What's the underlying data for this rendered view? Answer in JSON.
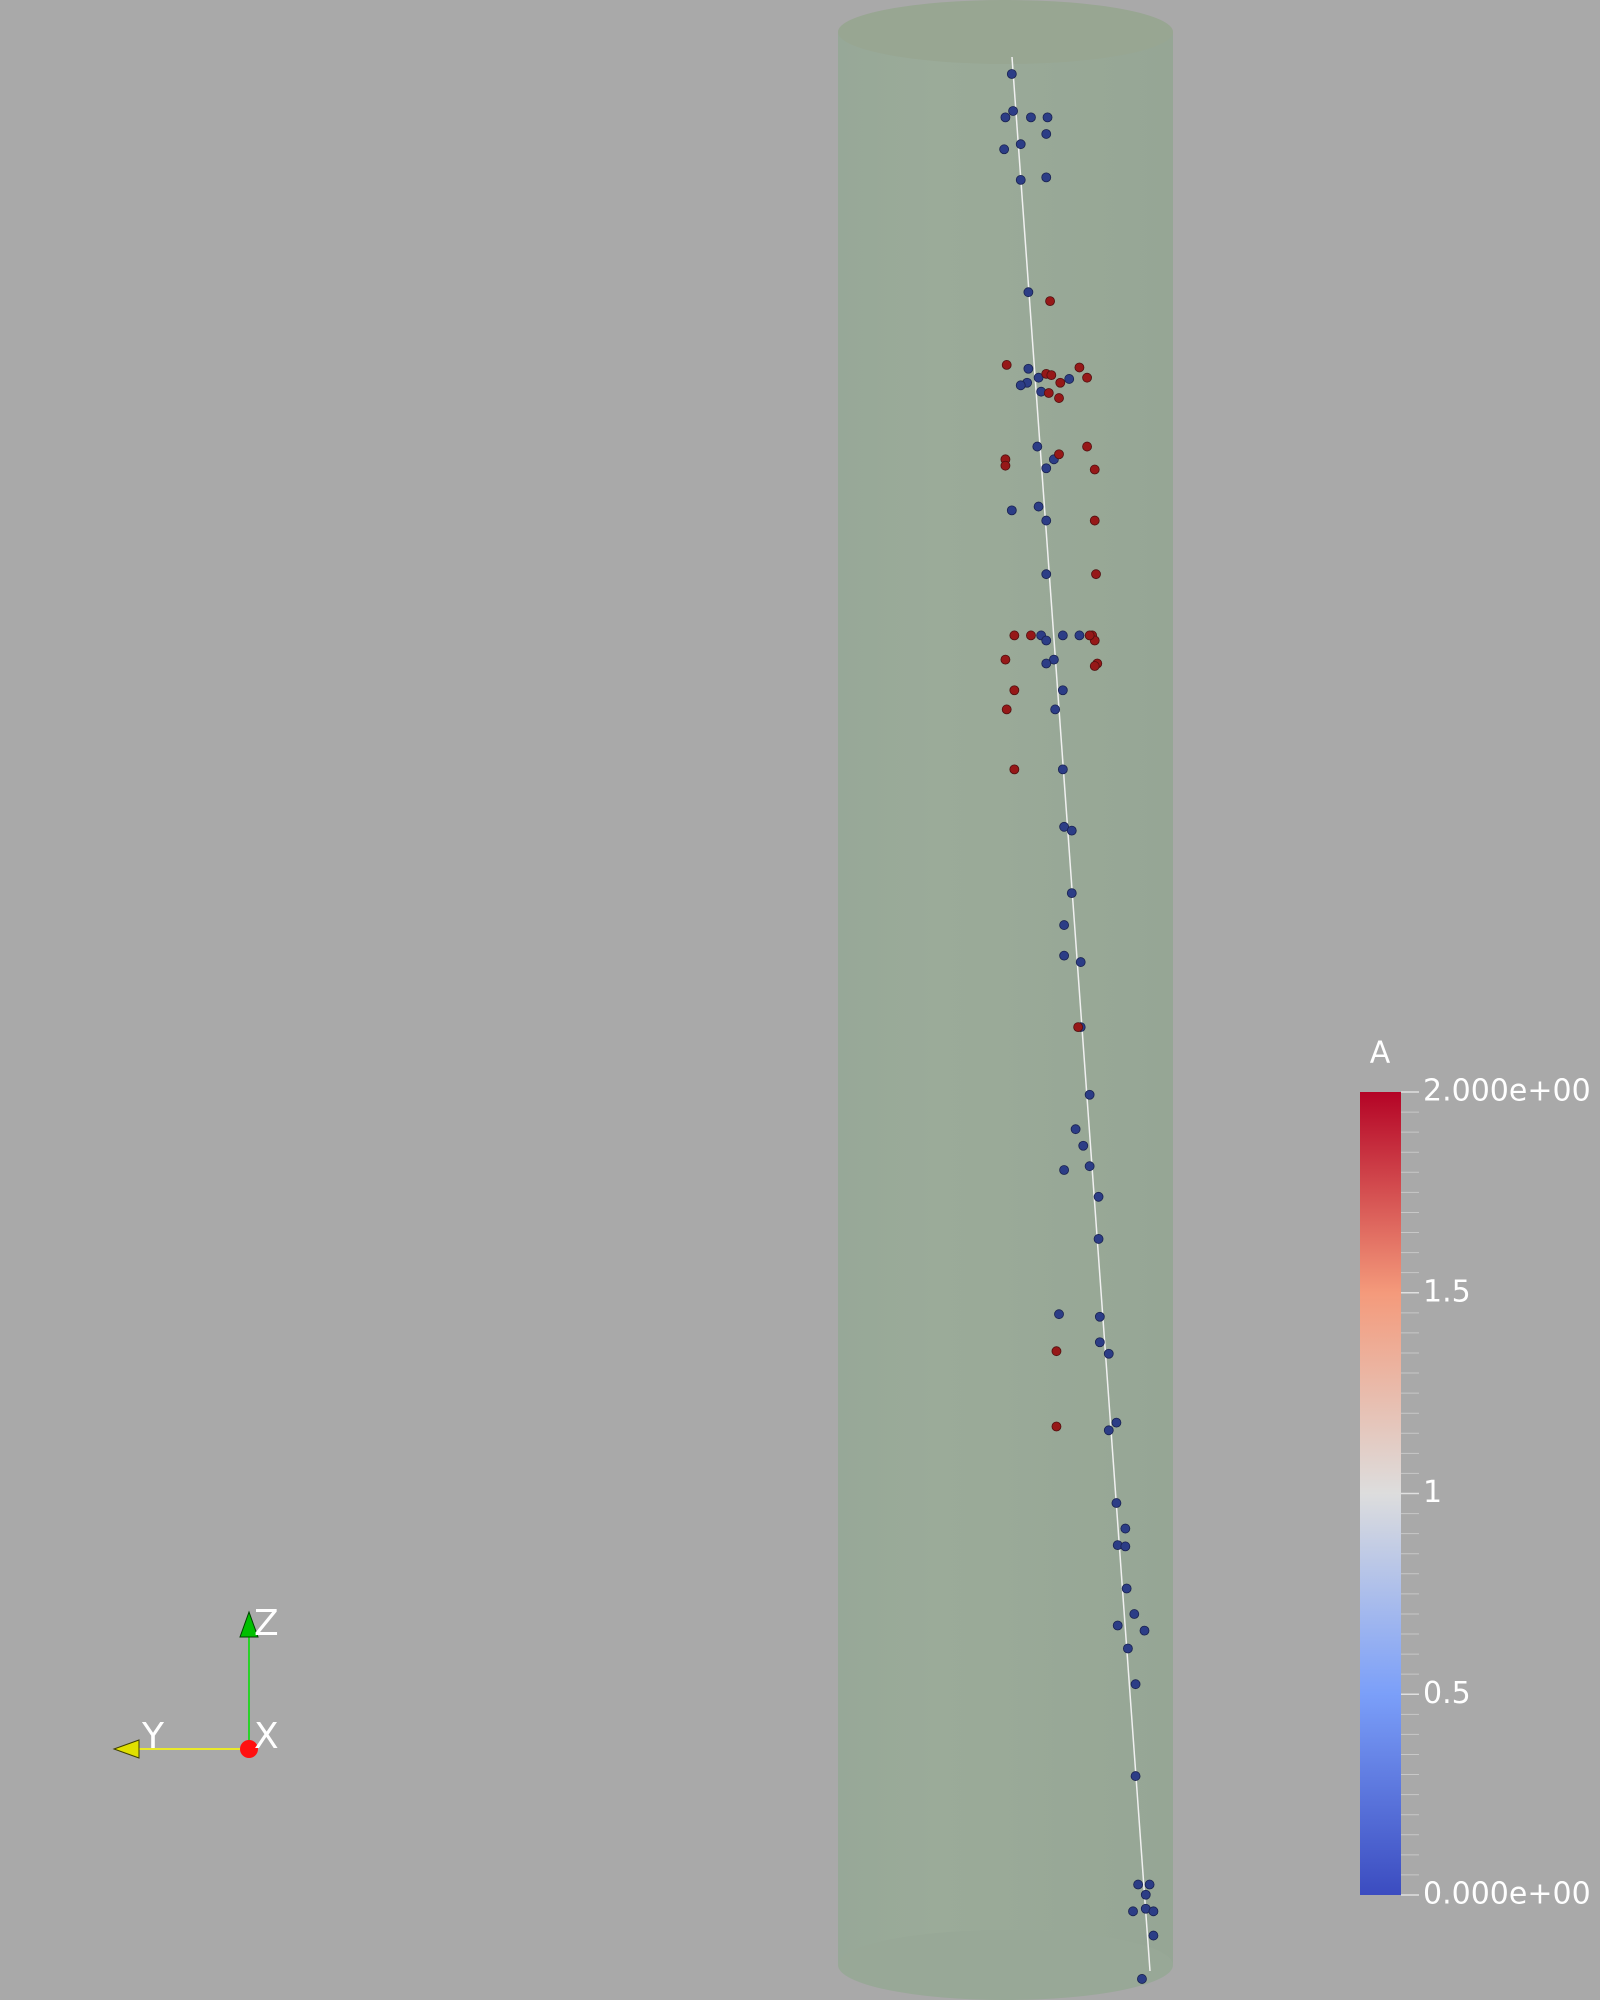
{
  "colorbar": {
    "title": "A",
    "range": [
      0,
      2
    ],
    "ticks": [
      {
        "value": 2,
        "label": "2.000e+00"
      },
      1.5,
      1,
      0.5,
      {
        "value": 0,
        "label": "0.000e+00"
      }
    ]
  },
  "orientation_axes": {
    "x": "X",
    "y": "Y",
    "z": "Z"
  }
}
